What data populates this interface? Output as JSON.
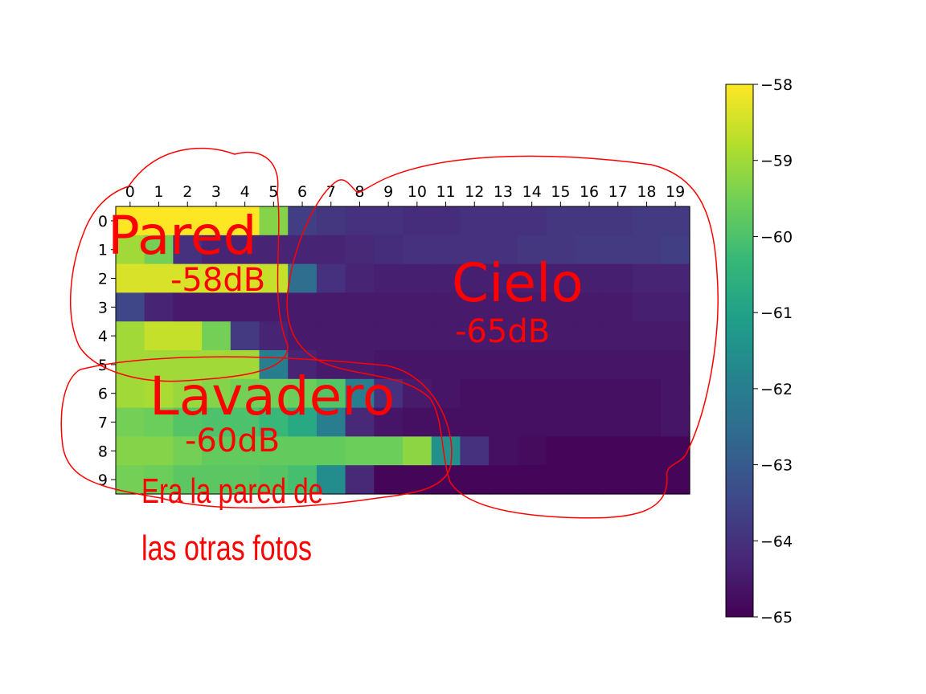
{
  "chart_data": {
    "type": "heatmap",
    "title": "",
    "xlabel": "",
    "ylabel": "",
    "x_ticks": [
      "0",
      "1",
      "2",
      "3",
      "4",
      "5",
      "6",
      "7",
      "8",
      "9",
      "10",
      "11",
      "12",
      "13",
      "14",
      "15",
      "16",
      "17",
      "18",
      "19"
    ],
    "y_ticks": [
      "0",
      "1",
      "2",
      "3",
      "4",
      "5",
      "6",
      "7",
      "8",
      "9"
    ],
    "x_axis_position": "top",
    "colormap": "viridis",
    "vmin": -65,
    "vmax": -58,
    "colorbar": {
      "position": "right",
      "ticks": [
        "−58",
        "−59",
        "−60",
        "−61",
        "−62",
        "−63",
        "−64",
        "−65"
      ],
      "tick_values": [
        -58,
        -59,
        -60,
        -61,
        -62,
        -63,
        -64,
        -65
      ]
    },
    "grid": false,
    "values": [
      [
        -58.0,
        -58.0,
        -58.0,
        -58.0,
        -58.0,
        -59.3,
        -63.7,
        -63.9,
        -64.0,
        -64.0,
        -64.1,
        -64.1,
        -64.0,
        -64.0,
        -64.0,
        -63.9,
        -63.9,
        -63.9,
        -63.8,
        -63.8
      ],
      [
        -59.0,
        -59.5,
        -64.0,
        -64.3,
        -64.3,
        -64.3,
        -64.3,
        -64.3,
        -64.2,
        -64.1,
        -64.0,
        -64.0,
        -64.0,
        -64.0,
        -63.9,
        -63.9,
        -63.8,
        -63.8,
        -63.8,
        -63.7
      ],
      [
        -58.4,
        -58.4,
        -58.4,
        -58.4,
        -58.4,
        -58.6,
        -62.5,
        -64.0,
        -64.3,
        -64.4,
        -64.4,
        -64.4,
        -64.4,
        -64.4,
        -64.4,
        -64.4,
        -64.4,
        -64.4,
        -64.3,
        -64.3
      ],
      [
        -63.5,
        -64.3,
        -64.5,
        -64.5,
        -64.5,
        -64.5,
        -64.5,
        -64.5,
        -64.5,
        -64.5,
        -64.5,
        -64.5,
        -64.5,
        -64.5,
        -64.5,
        -64.5,
        -64.5,
        -64.5,
        -64.4,
        -64.4
      ],
      [
        -59.0,
        -58.6,
        -58.6,
        -59.5,
        -63.8,
        -64.3,
        -64.5,
        -64.5,
        -64.5,
        -64.5,
        -64.5,
        -64.5,
        -64.5,
        -64.5,
        -64.5,
        -64.5,
        -64.5,
        -64.5,
        -64.5,
        -64.5
      ],
      [
        -59.0,
        -59.0,
        -59.0,
        -59.0,
        -59.0,
        -62.0,
        -64.3,
        -64.5,
        -64.5,
        -64.6,
        -64.6,
        -64.6,
        -64.6,
        -64.6,
        -64.6,
        -64.6,
        -64.6,
        -64.6,
        -64.6,
        -64.6
      ],
      [
        -59.0,
        -58.9,
        -59.1,
        -59.3,
        -59.5,
        -59.5,
        -59.6,
        -59.9,
        -62.0,
        -64.0,
        -64.5,
        -64.6,
        -64.7,
        -64.7,
        -64.7,
        -64.7,
        -64.7,
        -64.7,
        -64.7,
        -64.6
      ],
      [
        -59.5,
        -59.6,
        -59.9,
        -60.0,
        -60.0,
        -60.3,
        -60.8,
        -62.0,
        -64.2,
        -64.6,
        -64.7,
        -64.7,
        -64.7,
        -64.7,
        -64.7,
        -64.7,
        -64.7,
        -64.7,
        -64.7,
        -64.6
      ],
      [
        -59.3,
        -59.3,
        -59.5,
        -59.7,
        -59.7,
        -59.7,
        -59.7,
        -59.7,
        -59.6,
        -59.6,
        -59.2,
        -61.5,
        -64.0,
        -64.7,
        -64.8,
        -64.9,
        -64.9,
        -64.9,
        -64.9,
        -64.9
      ],
      [
        -59.5,
        -59.6,
        -59.8,
        -59.8,
        -59.8,
        -59.9,
        -60.1,
        -61.6,
        -64.2,
        -64.9,
        -64.9,
        -64.9,
        -64.9,
        -64.9,
        -64.9,
        -64.9,
        -64.9,
        -64.9,
        -64.9,
        -64.9
      ]
    ],
    "annotations": [
      {
        "id": "pared",
        "text": "Pared",
        "value_text": "-58dB"
      },
      {
        "id": "cielo",
        "text": "Cielo",
        "value_text": "-65dB"
      },
      {
        "id": "lavadero",
        "text": "Lavadero",
        "value_text": "-60dB"
      },
      {
        "id": "note",
        "lines": [
          "Era la pared de",
          "las otras fotos"
        ]
      }
    ],
    "annotation_color": "#ff0000"
  }
}
